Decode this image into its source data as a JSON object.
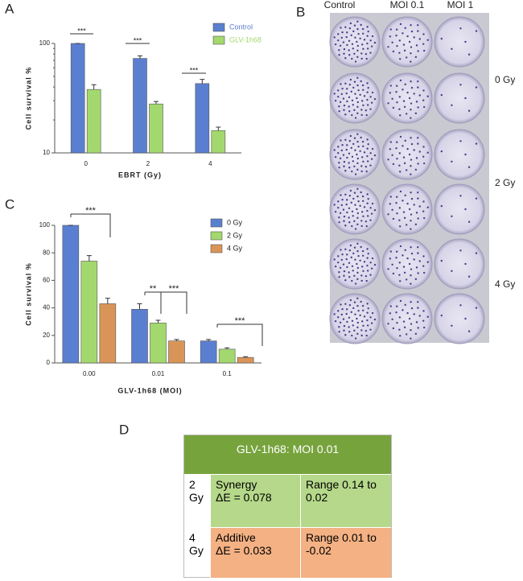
{
  "panel_labels": [
    "A",
    "B",
    "C",
    "D"
  ],
  "chart_data": [
    {
      "type": "bar",
      "log_scale": true,
      "ylabel": "Cell survival %",
      "xlabel": "EBRT (Gy)",
      "categories": [
        "0",
        "2",
        "4"
      ],
      "series": [
        {
          "name": "Control",
          "color": "#5b7fd0",
          "values": [
            100,
            73,
            43
          ],
          "errors": [
            0,
            4,
            4
          ]
        },
        {
          "name": "GLV-1h68",
          "color": "#a3d86e",
          "values": [
            38,
            28,
            16
          ],
          "errors": [
            4,
            1.5,
            1.2
          ]
        }
      ],
      "ylim": [
        10,
        100
      ],
      "yticks": [
        10,
        100
      ],
      "legend": "top-right",
      "annotations": [
        "***",
        "***",
        "***"
      ]
    },
    {
      "type": "bar",
      "ylabel": "Cell survival %",
      "xlabel": "GLV-1h68 (MOI)",
      "categories": [
        "0.00",
        "0.01",
        "0.1"
      ],
      "series": [
        {
          "name": "0 Gy",
          "color": "#5b7fd0",
          "values": [
            100,
            39,
            16
          ],
          "errors": [
            0,
            4,
            1
          ]
        },
        {
          "name": "2 Gy",
          "color": "#a3d86e",
          "values": [
            74,
            29,
            10
          ],
          "errors": [
            4,
            2,
            1
          ]
        },
        {
          "name": "4 Gy",
          "color": "#d99558",
          "values": [
            43,
            16,
            4
          ],
          "errors": [
            4,
            1,
            0.5
          ]
        }
      ],
      "ylim": [
        0,
        100
      ],
      "yticks": [
        0,
        20,
        40,
        60,
        80,
        100
      ],
      "legend": "top-right",
      "annotations": [
        "***",
        "**",
        "***",
        "***"
      ]
    }
  ],
  "plates": {
    "columns": [
      "Control",
      "MOI 0.1",
      "MOI 1"
    ],
    "rows": [
      "0 Gy",
      "2 Gy",
      "4 Gy"
    ]
  },
  "table": {
    "title": "GLV-1h68: MOI 0.01",
    "rows": [
      [
        "2 Gy",
        "Synergy\nΔE = 0.078",
        "Range 0.14 to 0.02"
      ],
      [
        "4 Gy",
        "Additive\nΔE = 0.033",
        "Range  0.01 to -0.02"
      ]
    ]
  }
}
